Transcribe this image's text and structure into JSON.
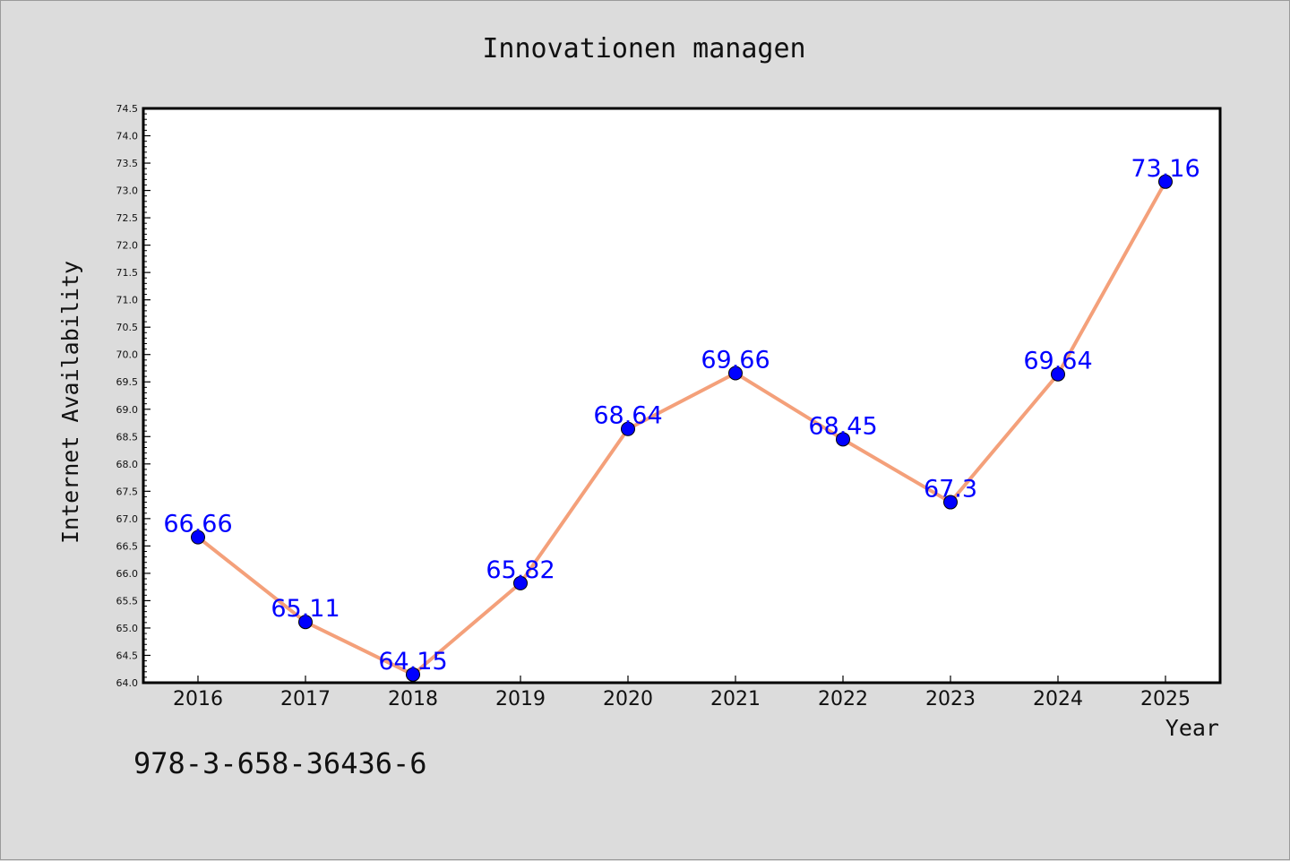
{
  "chart_data": {
    "type": "line",
    "title": "Innovationen managen",
    "xlabel": "Year",
    "ylabel": "Internet Availability",
    "categories": [
      "2016",
      "2017",
      "2018",
      "2019",
      "2020",
      "2021",
      "2022",
      "2023",
      "2024",
      "2025"
    ],
    "series": [
      {
        "values": [
          66.66,
          65.11,
          64.15,
          65.82,
          68.64,
          69.66,
          68.45,
          67.3,
          69.64,
          73.16
        ],
        "line_color": "#f4a07a",
        "marker_color": "#0000ff"
      }
    ],
    "data_labels": [
      "66.66",
      "65.11",
      "64.15",
      "65.82",
      "68.64",
      "69.66",
      "68.45",
      "67.3",
      "69.64",
      "73.16"
    ],
    "ylim": [
      64.0,
      74.5
    ],
    "ytick_step": 0.5,
    "grid": false,
    "legend": "none"
  },
  "footer": {
    "isbn": "978-3-658-36436-6"
  }
}
